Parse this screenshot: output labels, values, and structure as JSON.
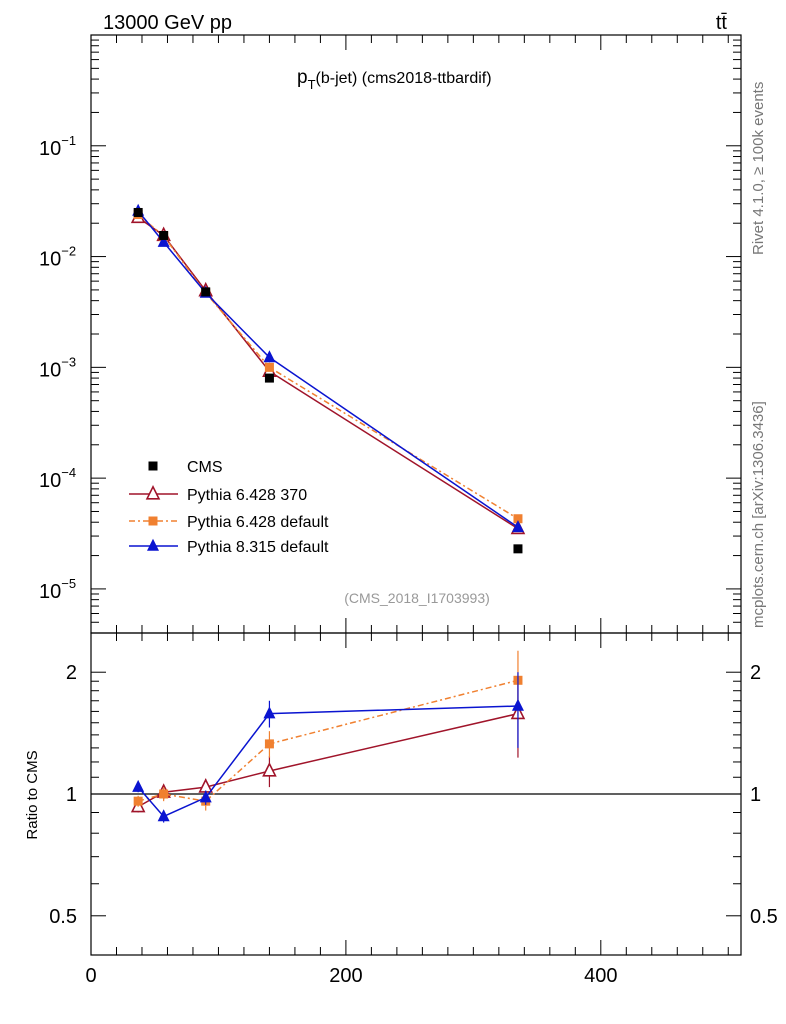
{
  "header": {
    "left": "13000 GeV pp",
    "right": "tt̄"
  },
  "side_text": {
    "rivet": "Rivet 4.1.0, ≥ 100k events",
    "site": "mcplots.cern.ch [arXiv:1306.3436]"
  },
  "chart_data": {
    "type": "line",
    "title_main": "p",
    "title_sub": "T",
    "title_rest": "(b-jet) (cms2018-ttbardif)",
    "watermark": "(CMS_2018_I1703993)",
    "xlim": [
      0,
      510
    ],
    "ylim_log": [
      4e-06,
      1.0
    ],
    "ratio_ylim_log": [
      0.4,
      2.5
    ],
    "ratio_ylabel": "Ratio to CMS",
    "x_ticks": [
      "0",
      "200",
      "400"
    ],
    "y_ticks": [
      {
        "base": "10",
        "exp": "−1"
      },
      {
        "base": "10",
        "exp": "−2"
      },
      {
        "base": "10",
        "exp": "−3"
      },
      {
        "base": "10",
        "exp": "−4"
      },
      {
        "base": "10",
        "exp": "−5"
      }
    ],
    "ratio_ticks": [
      "2",
      "1",
      "0.5"
    ],
    "x": [
      37,
      57,
      90,
      140,
      335
    ],
    "series": [
      {
        "name": "CMS",
        "color": "#000000",
        "marker": "square",
        "values": [
          0.025,
          0.0155,
          0.0048,
          0.0008,
          2.3e-05
        ],
        "ratio": [
          1.0,
          1.0,
          1.0,
          1.0,
          1.0
        ],
        "ratio_err": [
          0,
          0,
          0,
          0,
          0
        ]
      },
      {
        "name": "Pythia 6.428 370",
        "color": "#a0142a",
        "marker": "open-triangle",
        "values": [
          0.0225,
          0.0155,
          0.0049,
          0.00092,
          3.5e-05
        ],
        "ratio": [
          0.93,
          1.01,
          1.04,
          1.14,
          1.58
        ],
        "ratio_err": [
          0.03,
          0.04,
          0.05,
          0.1,
          0.35
        ]
      },
      {
        "name": "Pythia 6.428 default",
        "color": "#f08030",
        "marker": "square",
        "values": [
          0.024,
          0.0153,
          0.0047,
          0.001,
          4.3e-05
        ],
        "ratio": [
          0.96,
          1.0,
          0.96,
          1.33,
          1.91
        ],
        "ratio_err": [
          0.03,
          0.04,
          0.05,
          0.1,
          0.35
        ]
      },
      {
        "name": "Pythia 8.315 default",
        "color": "#0a14d0",
        "marker": "triangle",
        "values": [
          0.0258,
          0.0135,
          0.0047,
          0.00123,
          3.6e-05
        ],
        "ratio": [
          1.04,
          0.88,
          0.98,
          1.58,
          1.65
        ],
        "ratio_err": [
          0.03,
          0.03,
          0.04,
          0.12,
          0.35
        ]
      }
    ]
  }
}
